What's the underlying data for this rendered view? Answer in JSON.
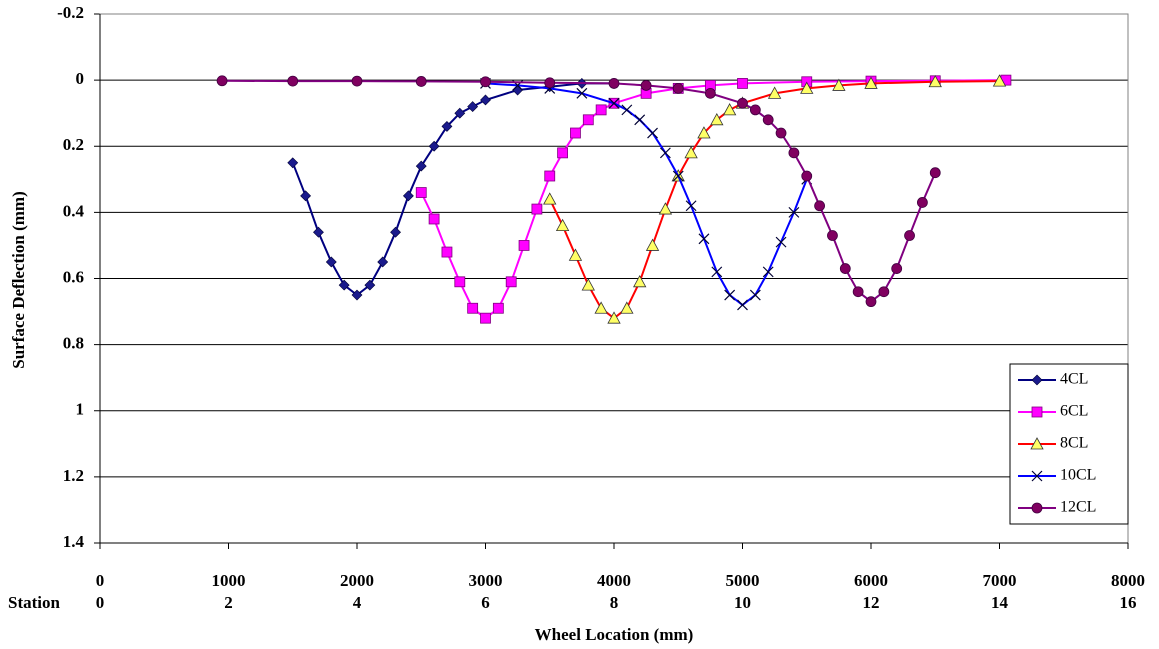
{
  "chart_data": {
    "type": "line",
    "x_label": "Wheel Location (mm)",
    "y_label": "Surface Deflection (mm)",
    "xlim": [
      0,
      8000
    ],
    "xticks": [
      0,
      1000,
      2000,
      3000,
      4000,
      5000,
      6000,
      7000,
      8000
    ],
    "station_label": "Station",
    "station_ticks": [
      0,
      2,
      4,
      6,
      8,
      10,
      12,
      14,
      16
    ],
    "ylim": [
      -0.2,
      1.4
    ],
    "y_inverted": true,
    "yticks": [
      -0.2,
      0,
      0.2,
      0.4,
      0.6,
      0.8,
      1,
      1.2,
      1.4
    ],
    "grid": true,
    "legend": "lower right",
    "series": [
      {
        "name": "4CL",
        "color": "#000080",
        "marker": "diamond",
        "marker_color": "#1a1a8c",
        "x": [
          1500,
          1600,
          1700,
          1800,
          1900,
          2000,
          2100,
          2200,
          2300,
          2400,
          2500,
          2600,
          2700,
          2800,
          2900,
          3000,
          3250,
          3500,
          3750,
          4000
        ],
        "values": [
          0.25,
          0.35,
          0.46,
          0.55,
          0.62,
          0.65,
          0.62,
          0.55,
          0.46,
          0.35,
          0.26,
          0.2,
          0.14,
          0.1,
          0.08,
          0.06,
          0.03,
          0.02,
          0.01,
          0.01
        ]
      },
      {
        "name": "6CL",
        "color": "#ff00ff",
        "marker": "square",
        "marker_color": "#ff00ff",
        "x": [
          2500,
          2600,
          2700,
          2800,
          2900,
          3000,
          3100,
          3200,
          3300,
          3400,
          3500,
          3600,
          3700,
          3800,
          3900,
          4000,
          4250,
          4500,
          4750,
          5000,
          5500,
          6000,
          6500,
          7050
        ],
        "values": [
          0.34,
          0.42,
          0.52,
          0.61,
          0.69,
          0.72,
          0.69,
          0.61,
          0.5,
          0.39,
          0.29,
          0.22,
          0.16,
          0.12,
          0.09,
          0.07,
          0.04,
          0.025,
          0.016,
          0.01,
          0.005,
          0.003,
          0.002,
          0
        ]
      },
      {
        "name": "8CL",
        "color": "#ff0000",
        "marker": "triangle",
        "marker_color": "#ffff66",
        "x": [
          3500,
          3600,
          3700,
          3800,
          3900,
          4000,
          4100,
          4200,
          4300,
          4400,
          4500,
          4600,
          4700,
          4800,
          4900,
          5000,
          5250,
          5500,
          5750,
          6000,
          6500,
          7000
        ],
        "values": [
          0.36,
          0.44,
          0.53,
          0.62,
          0.69,
          0.72,
          0.69,
          0.61,
          0.5,
          0.39,
          0.29,
          0.22,
          0.16,
          0.12,
          0.09,
          0.07,
          0.04,
          0.025,
          0.016,
          0.01,
          0.005,
          0.003
        ]
      },
      {
        "name": "10CL",
        "color": "#0000ff",
        "marker": "cross",
        "marker_color": "#000033",
        "x": [
          3000,
          3250,
          3500,
          3750,
          4000,
          4100,
          4200,
          4300,
          4400,
          4500,
          4600,
          4700,
          4800,
          4900,
          5000,
          5100,
          5200,
          5300,
          5400,
          5500
        ],
        "values": [
          0.01,
          0.016,
          0.025,
          0.04,
          0.07,
          0.09,
          0.12,
          0.16,
          0.22,
          0.29,
          0.38,
          0.48,
          0.58,
          0.65,
          0.68,
          0.65,
          0.58,
          0.49,
          0.4,
          0.3
        ]
      },
      {
        "name": "12CL",
        "color": "#800080",
        "marker": "circle",
        "marker_color": "#800060",
        "x": [
          950,
          1500,
          2000,
          2500,
          3000,
          3500,
          4000,
          4250,
          4500,
          4750,
          5000,
          5100,
          5200,
          5300,
          5400,
          5500,
          5600,
          5700,
          5800,
          5900,
          6000,
          6100,
          6200,
          6300,
          6400,
          6500
        ],
        "values": [
          0.002,
          0.003,
          0.003,
          0.004,
          0.005,
          0.008,
          0.01,
          0.016,
          0.025,
          0.04,
          0.07,
          0.09,
          0.12,
          0.16,
          0.22,
          0.29,
          0.38,
          0.47,
          0.57,
          0.64,
          0.67,
          0.64,
          0.57,
          0.47,
          0.37,
          0.28
        ]
      }
    ]
  }
}
